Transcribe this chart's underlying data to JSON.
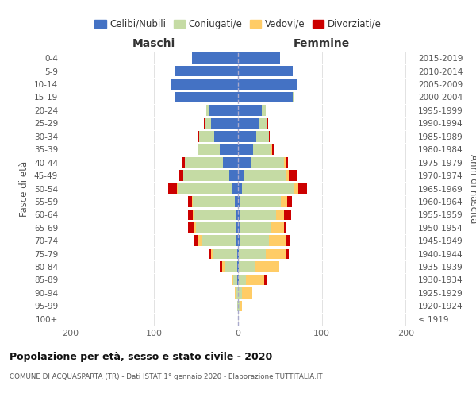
{
  "age_groups": [
    "100+",
    "95-99",
    "90-94",
    "85-89",
    "80-84",
    "75-79",
    "70-74",
    "65-69",
    "60-64",
    "55-59",
    "50-54",
    "45-49",
    "40-44",
    "35-39",
    "30-34",
    "25-29",
    "20-24",
    "15-19",
    "10-14",
    "5-9",
    "0-4"
  ],
  "birth_years": [
    "≤ 1919",
    "1920-1924",
    "1925-1929",
    "1930-1934",
    "1935-1939",
    "1940-1944",
    "1945-1949",
    "1950-1954",
    "1955-1959",
    "1960-1964",
    "1965-1969",
    "1970-1974",
    "1975-1979",
    "1980-1984",
    "1985-1989",
    "1990-1994",
    "1995-1999",
    "2000-2004",
    "2005-2009",
    "2010-2014",
    "2015-2019"
  ],
  "maschi": {
    "celibi": [
      0,
      0,
      0,
      1,
      1,
      1,
      3,
      2,
      3,
      4,
      7,
      10,
      18,
      22,
      28,
      32,
      35,
      75,
      80,
      75,
      55
    ],
    "coniugati": [
      0,
      1,
      3,
      5,
      15,
      28,
      40,
      48,
      50,
      50,
      65,
      55,
      45,
      25,
      18,
      8,
      3,
      1,
      0,
      0,
      0
    ],
    "vedovi": [
      0,
      0,
      1,
      2,
      3,
      3,
      5,
      2,
      1,
      1,
      1,
      0,
      0,
      0,
      0,
      0,
      0,
      0,
      0,
      0,
      0
    ],
    "divorziati": [
      0,
      0,
      0,
      0,
      3,
      3,
      5,
      8,
      6,
      5,
      10,
      5,
      3,
      1,
      1,
      1,
      0,
      0,
      0,
      0,
      0
    ]
  },
  "femmine": {
    "nubili": [
      0,
      0,
      0,
      1,
      1,
      1,
      2,
      2,
      3,
      3,
      5,
      8,
      15,
      18,
      22,
      25,
      28,
      65,
      70,
      65,
      50
    ],
    "coniugate": [
      0,
      2,
      5,
      8,
      20,
      32,
      35,
      38,
      42,
      48,
      62,
      50,
      40,
      22,
      15,
      10,
      5,
      2,
      0,
      0,
      0
    ],
    "vedove": [
      0,
      3,
      12,
      22,
      28,
      25,
      20,
      15,
      10,
      8,
      5,
      3,
      2,
      1,
      0,
      0,
      0,
      0,
      0,
      0,
      0
    ],
    "divorziate": [
      0,
      0,
      0,
      3,
      0,
      3,
      5,
      3,
      8,
      5,
      10,
      10,
      3,
      2,
      1,
      1,
      0,
      0,
      0,
      0,
      0
    ]
  },
  "colors": {
    "celibi": "#4472C4",
    "coniugati": "#C5DBA4",
    "vedovi": "#FFCC66",
    "divorziati": "#CC0000"
  },
  "xlim": 210,
  "title": "Popolazione per età, sesso e stato civile - 2020",
  "subtitle": "COMUNE DI ACQUASPARTA (TR) - Dati ISTAT 1° gennaio 2020 - Elaborazione TUTTITALIA.IT",
  "ylabel_left": "Fasce di età",
  "ylabel_right": "Anni di nascita",
  "xlabel_left": "Maschi",
  "xlabel_right": "Femmine",
  "legend_labels": [
    "Celibi/Nubili",
    "Coniugati/e",
    "Vedovi/e",
    "Divorziati/e"
  ],
  "bg_color": "#FFFFFF",
  "grid_color": "#DDDDDD"
}
